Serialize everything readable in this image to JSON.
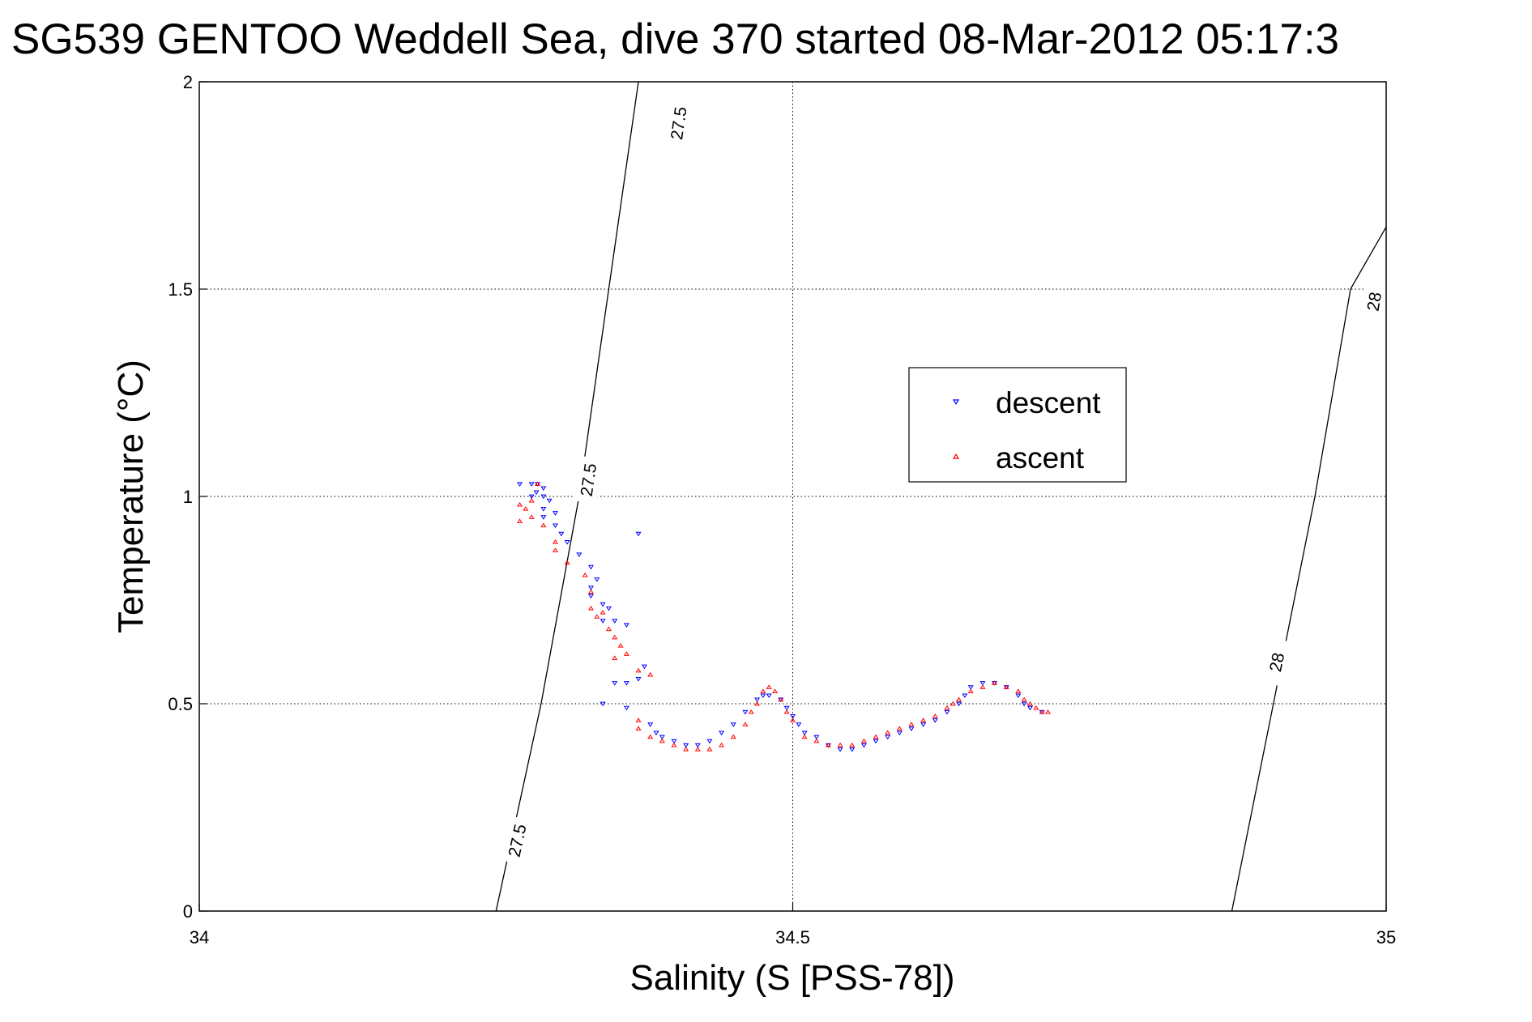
{
  "chart_data": {
    "type": "scatter",
    "title": "SG539 GENTOO Weddell Sea, dive 370 started 08-Mar-2012 05:17:3",
    "xlabel": "Salinity (S [PSS-78])",
    "ylabel": "Temperature (°C)",
    "xlim": [
      34,
      35
    ],
    "ylim": [
      0,
      2
    ],
    "x_ticks": [
      34,
      34.5,
      35
    ],
    "y_ticks": [
      0,
      0.5,
      1,
      1.5,
      2
    ],
    "x_tick_labels": [
      "34",
      "34.5",
      "35"
    ],
    "y_tick_labels": [
      "0",
      "0.5",
      "1",
      "1.5",
      "2"
    ],
    "grid": true,
    "legend_position": "upper-right-center",
    "density_contours": [
      {
        "level": "27.5",
        "points": [
          [
            34.25,
            0.0
          ],
          [
            34.288,
            0.5
          ],
          [
            34.32,
            1.0
          ],
          [
            34.345,
            1.5
          ],
          [
            34.37,
            2.0
          ]
        ],
        "label_positions": [
          [
            34.268,
            0.17
          ],
          [
            34.328,
            1.04
          ],
          [
            34.404,
            1.9
          ]
        ]
      },
      {
        "level": "28",
        "points": [
          [
            34.87,
            0.0
          ],
          [
            34.905,
            0.5
          ],
          [
            34.94,
            1.0
          ],
          [
            34.97,
            1.5
          ],
          [
            35.0,
            1.65
          ]
        ],
        "label_positions": [
          [
            34.908,
            0.6
          ],
          [
            34.99,
            1.47
          ]
        ]
      }
    ],
    "series": [
      {
        "name": "descent",
        "color": "#0000ff",
        "marker": "triangle-down",
        "points": [
          [
            34.27,
            1.03
          ],
          [
            34.28,
            1.03
          ],
          [
            34.285,
            1.03
          ],
          [
            34.29,
            1.02
          ],
          [
            34.284,
            1.01
          ],
          [
            34.29,
            1.0
          ],
          [
            34.28,
            1.0
          ],
          [
            34.295,
            0.99
          ],
          [
            34.29,
            0.97
          ],
          [
            34.3,
            0.96
          ],
          [
            34.29,
            0.95
          ],
          [
            34.3,
            0.93
          ],
          [
            34.305,
            0.91
          ],
          [
            34.31,
            0.89
          ],
          [
            34.32,
            0.86
          ],
          [
            34.33,
            0.83
          ],
          [
            34.335,
            0.8
          ],
          [
            34.33,
            0.78
          ],
          [
            34.33,
            0.76
          ],
          [
            34.34,
            0.74
          ],
          [
            34.345,
            0.73
          ],
          [
            34.34,
            0.7
          ],
          [
            34.35,
            0.7
          ],
          [
            34.36,
            0.69
          ],
          [
            34.37,
            0.91
          ],
          [
            34.375,
            0.59
          ],
          [
            34.35,
            0.55
          ],
          [
            34.36,
            0.55
          ],
          [
            34.37,
            0.56
          ],
          [
            34.34,
            0.5
          ],
          [
            34.36,
            0.49
          ],
          [
            34.38,
            0.45
          ],
          [
            34.385,
            0.43
          ],
          [
            34.39,
            0.42
          ],
          [
            34.4,
            0.41
          ],
          [
            34.41,
            0.4
          ],
          [
            34.42,
            0.4
          ],
          [
            34.43,
            0.41
          ],
          [
            34.44,
            0.43
          ],
          [
            34.45,
            0.45
          ],
          [
            34.46,
            0.48
          ],
          [
            34.47,
            0.51
          ],
          [
            34.475,
            0.52
          ],
          [
            34.48,
            0.52
          ],
          [
            34.49,
            0.51
          ],
          [
            34.495,
            0.49
          ],
          [
            34.5,
            0.47
          ],
          [
            34.505,
            0.45
          ],
          [
            34.51,
            0.43
          ],
          [
            34.52,
            0.42
          ],
          [
            34.53,
            0.4
          ],
          [
            34.54,
            0.39
          ],
          [
            34.55,
            0.39
          ],
          [
            34.56,
            0.4
          ],
          [
            34.57,
            0.41
          ],
          [
            34.58,
            0.42
          ],
          [
            34.59,
            0.43
          ],
          [
            34.6,
            0.44
          ],
          [
            34.61,
            0.45
          ],
          [
            34.62,
            0.46
          ],
          [
            34.63,
            0.48
          ],
          [
            34.64,
            0.5
          ],
          [
            34.645,
            0.52
          ],
          [
            34.65,
            0.54
          ],
          [
            34.66,
            0.55
          ],
          [
            34.67,
            0.55
          ],
          [
            34.68,
            0.54
          ],
          [
            34.69,
            0.52
          ],
          [
            34.695,
            0.5
          ],
          [
            34.7,
            0.49
          ],
          [
            34.71,
            0.48
          ]
        ]
      },
      {
        "name": "ascent",
        "color": "#ff0000",
        "marker": "triangle-up",
        "points": [
          [
            34.27,
            0.98
          ],
          [
            34.275,
            0.97
          ],
          [
            34.28,
            0.99
          ],
          [
            34.285,
            1.03
          ],
          [
            34.27,
            0.94
          ],
          [
            34.28,
            0.95
          ],
          [
            34.29,
            0.93
          ],
          [
            34.3,
            0.89
          ],
          [
            34.3,
            0.87
          ],
          [
            34.31,
            0.84
          ],
          [
            34.325,
            0.81
          ],
          [
            34.33,
            0.77
          ],
          [
            34.33,
            0.73
          ],
          [
            34.335,
            0.71
          ],
          [
            34.34,
            0.72
          ],
          [
            34.345,
            0.68
          ],
          [
            34.35,
            0.66
          ],
          [
            34.355,
            0.64
          ],
          [
            34.35,
            0.61
          ],
          [
            34.36,
            0.62
          ],
          [
            34.37,
            0.58
          ],
          [
            34.38,
            0.57
          ],
          [
            34.37,
            0.46
          ],
          [
            34.37,
            0.44
          ],
          [
            34.38,
            0.42
          ],
          [
            34.39,
            0.41
          ],
          [
            34.4,
            0.4
          ],
          [
            34.41,
            0.39
          ],
          [
            34.42,
            0.39
          ],
          [
            34.43,
            0.39
          ],
          [
            34.44,
            0.4
          ],
          [
            34.45,
            0.42
          ],
          [
            34.46,
            0.45
          ],
          [
            34.465,
            0.48
          ],
          [
            34.47,
            0.5
          ],
          [
            34.475,
            0.53
          ],
          [
            34.48,
            0.54
          ],
          [
            34.485,
            0.53
          ],
          [
            34.49,
            0.51
          ],
          [
            34.495,
            0.48
          ],
          [
            34.5,
            0.46
          ],
          [
            34.51,
            0.42
          ],
          [
            34.52,
            0.41
          ],
          [
            34.53,
            0.4
          ],
          [
            34.54,
            0.4
          ],
          [
            34.55,
            0.4
          ],
          [
            34.56,
            0.41
          ],
          [
            34.57,
            0.42
          ],
          [
            34.58,
            0.43
          ],
          [
            34.59,
            0.44
          ],
          [
            34.6,
            0.45
          ],
          [
            34.61,
            0.46
          ],
          [
            34.62,
            0.47
          ],
          [
            34.63,
            0.49
          ],
          [
            34.635,
            0.5
          ],
          [
            34.64,
            0.51
          ],
          [
            34.65,
            0.53
          ],
          [
            34.66,
            0.54
          ],
          [
            34.67,
            0.55
          ],
          [
            34.68,
            0.54
          ],
          [
            34.69,
            0.53
          ],
          [
            34.695,
            0.51
          ],
          [
            34.7,
            0.5
          ],
          [
            34.705,
            0.49
          ],
          [
            34.71,
            0.48
          ],
          [
            34.715,
            0.48
          ]
        ]
      }
    ]
  }
}
